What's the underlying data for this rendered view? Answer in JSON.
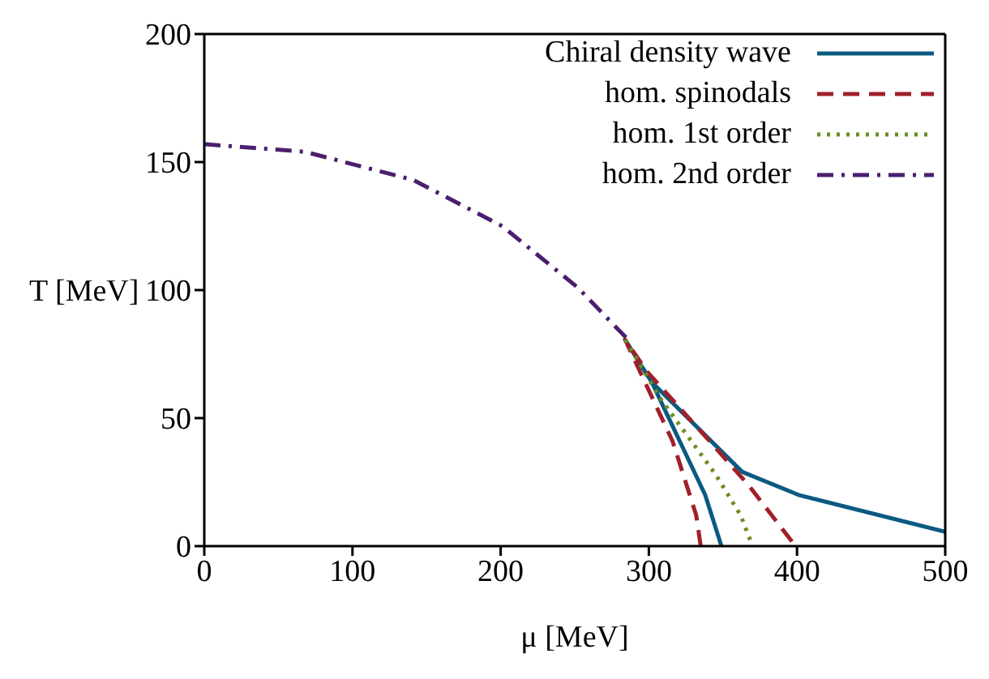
{
  "chart_data": {
    "type": "line",
    "xlabel": "μ [MeV]",
    "ylabel": "T [MeV]",
    "xlim": [
      0,
      500
    ],
    "ylim": [
      0,
      200
    ],
    "xticks": [
      0,
      100,
      200,
      300,
      400,
      500
    ],
    "yticks": [
      0,
      50,
      100,
      150,
      200
    ],
    "legend": "top right",
    "marker": "none",
    "series": [
      {
        "name": "Chiral density wave",
        "color": "#0b5a80",
        "line_style": "solid",
        "x": [
          500,
          401,
          363,
          302,
          284,
          302,
          338,
          349
        ],
        "values": [
          5.6,
          20,
          29,
          64,
          80.6,
          64,
          20,
          0
        ]
      },
      {
        "name": "hom. spinodals",
        "color": "#a0202a",
        "line_style": "dashed",
        "x": [
          335,
          332,
          316,
          284,
          299,
          341,
          367,
          399
        ],
        "values": [
          0,
          12,
          41,
          80.6,
          68,
          41,
          24,
          0
        ]
      },
      {
        "name": "hom. 1st order",
        "color": "#6b8e23",
        "line_style": "dotted",
        "x": [
          284,
          308,
          345,
          362,
          370
        ],
        "values": [
          80.6,
          57.5,
          28,
          12,
          0
        ]
      },
      {
        "name": "hom. 2nd order",
        "color": "#4b1e6e",
        "line_style": "dashdot",
        "x": [
          0,
          68,
          141,
          201,
          252,
          286
        ],
        "values": [
          157,
          154,
          143,
          125,
          101,
          80.6
        ]
      }
    ]
  }
}
